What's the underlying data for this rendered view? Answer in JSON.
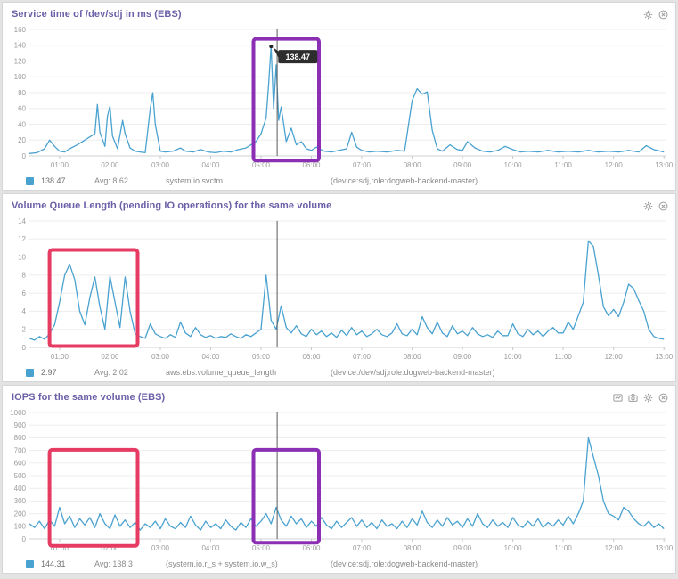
{
  "colors": {
    "series_blue": "#4aa2d0",
    "annotation_purple": "#8b2fb5",
    "annotation_red": "#e63b63",
    "title_purple": "#6c5fa7",
    "tooltip_bg": "#2d2d2d"
  },
  "chart_data": [
    {
      "type": "line",
      "title": "Service time of /dev/sdj in ms (EBS)",
      "legend": {
        "value": "138.47",
        "avg": "Avg: 8.62",
        "metric": "system.io.svctm",
        "scope": "(device:sdj,role:dogweb-backend-master)"
      },
      "xlim": [
        0.4,
        13.05
      ],
      "ylim": [
        0,
        160
      ],
      "ystep": 20,
      "xticks": [
        "01:00",
        "02:00",
        "03:00",
        "04:00",
        "05:00",
        "06:00",
        "07:00",
        "08:00",
        "09:00",
        "10:00",
        "11:00",
        "12:00",
        "13:00"
      ],
      "crosshair_x": 5.32,
      "tooltip": {
        "x": 5.2,
        "y": 138.47,
        "label": "138.47"
      },
      "boxes": [
        {
          "x0": 4.85,
          "x1": 6.15,
          "y0": -6,
          "y1": 148,
          "color": "#8b2fb5",
          "name": "spike-highlight"
        }
      ],
      "series": [
        {
          "name": "system.io.svctm",
          "color": "#4aa2d0",
          "x": [
            0.4,
            0.55,
            0.7,
            0.8,
            0.9,
            1.0,
            1.1,
            1.2,
            1.35,
            1.5,
            1.6,
            1.7,
            1.75,
            1.8,
            1.9,
            1.95,
            2.0,
            2.05,
            2.15,
            2.25,
            2.3,
            2.4,
            2.5,
            2.6,
            2.7,
            2.8,
            2.85,
            2.9,
            3.0,
            3.1,
            3.25,
            3.4,
            3.5,
            3.65,
            3.8,
            3.95,
            4.1,
            4.25,
            4.4,
            4.55,
            4.7,
            4.8,
            4.9,
            5.0,
            5.1,
            5.15,
            5.2,
            5.25,
            5.3,
            5.35,
            5.4,
            5.5,
            5.6,
            5.7,
            5.8,
            5.9,
            6.0,
            6.1,
            6.25,
            6.4,
            6.55,
            6.7,
            6.8,
            6.9,
            7.0,
            7.15,
            7.3,
            7.5,
            7.7,
            7.85,
            8.0,
            8.1,
            8.2,
            8.3,
            8.4,
            8.5,
            8.6,
            8.75,
            8.9,
            9.0,
            9.1,
            9.25,
            9.4,
            9.55,
            9.7,
            9.85,
            10.0,
            10.15,
            10.3,
            10.5,
            10.7,
            10.9,
            11.1,
            11.3,
            11.5,
            11.7,
            11.9,
            12.1,
            12.3,
            12.5,
            12.65,
            12.8,
            13.0
          ],
          "y": [
            3,
            4,
            9,
            20,
            12,
            6,
            5,
            9,
            14,
            20,
            24,
            28,
            65,
            30,
            12,
            50,
            63,
            25,
            9,
            45,
            28,
            10,
            6,
            5,
            4,
            60,
            80,
            40,
            6,
            5,
            6,
            10,
            6,
            5,
            8,
            5,
            4,
            6,
            5,
            8,
            10,
            14,
            18,
            28,
            48,
            90,
            138.47,
            60,
            115,
            45,
            62,
            18,
            35,
            14,
            18,
            9,
            7,
            11,
            6,
            5,
            7,
            9,
            30,
            11,
            7,
            5,
            6,
            5,
            7,
            6,
            70,
            85,
            78,
            81,
            32,
            9,
            6,
            14,
            8,
            7,
            18,
            10,
            6,
            5,
            7,
            12,
            8,
            5,
            6,
            5,
            7,
            5,
            6,
            5,
            7,
            5,
            6,
            5,
            7,
            5,
            13,
            8,
            5
          ]
        }
      ]
    },
    {
      "type": "line",
      "title": "Volume Queue Length (pending IO operations) for the same volume",
      "legend": {
        "value": "2.97",
        "avg": "Avg: 2.02",
        "metric": "aws.ebs.volume_queue_length",
        "scope": "(device:/dev/sdj,role:dogweb-backend-master)"
      },
      "xlim": [
        0.4,
        13.05
      ],
      "ylim": [
        0,
        14
      ],
      "ystep": 2,
      "xticks": [
        "01:00",
        "02:00",
        "03:00",
        "04:00",
        "05:00",
        "06:00",
        "07:00",
        "08:00",
        "09:00",
        "10:00",
        "11:00",
        "12:00",
        "13:00"
      ],
      "crosshair_x": 5.32,
      "boxes": [
        {
          "x0": 0.8,
          "x1": 2.55,
          "y0": 0.15,
          "y1": 10.8,
          "color": "#e63b63",
          "name": "queue-spike-highlight"
        }
      ],
      "series": [
        {
          "name": "aws.ebs.volume_queue_length",
          "color": "#4aa2d0",
          "x_start": 0.4,
          "x_step": 0.1,
          "y": [
            1,
            0.8,
            1.2,
            0.9,
            1.5,
            2.5,
            5,
            8,
            9.2,
            7.5,
            4,
            2.5,
            5.5,
            7.8,
            4.5,
            2,
            7.9,
            5,
            2.2,
            7.8,
            4,
            1.5,
            1.2,
            1,
            2.6,
            1.5,
            1.2,
            1,
            1.4,
            1.1,
            2.8,
            1.6,
            1.2,
            2.2,
            1.4,
            1.1,
            1.3,
            1,
            1.2,
            1.1,
            1.5,
            1.2,
            1,
            1.4,
            1.2,
            1.6,
            2,
            8,
            3,
            2,
            4.6,
            2.2,
            1.6,
            2.4,
            1.5,
            1.2,
            2,
            1.4,
            1.8,
            1.2,
            1.6,
            1.1,
            1.9,
            1.3,
            2.2,
            1.4,
            1.8,
            1.2,
            1.5,
            2,
            1.4,
            1.2,
            1.6,
            2.6,
            1.5,
            1.3,
            2,
            1.4,
            3.4,
            2.2,
            1.5,
            2.8,
            1.6,
            1.2,
            2.4,
            1.5,
            1.8,
            1.3,
            2.2,
            1.5,
            1.2,
            1.4,
            1.1,
            1.8,
            1.3,
            1.3,
            2.6,
            1.5,
            1.2,
            2,
            1.4,
            1.8,
            1.2,
            1.8,
            2.2,
            1.6,
            1.6,
            2.8,
            2,
            3.5,
            5,
            11.8,
            11.2,
            8,
            4.5,
            3.5,
            4.2,
            3.4,
            5,
            7,
            6.5,
            5.2,
            4,
            2,
            1.2,
            1,
            0.9
          ]
        }
      ]
    },
    {
      "type": "line",
      "title": "IOPS for the same volume (EBS)",
      "legend": {
        "value": "144.31",
        "avg": "Avg: 138.3",
        "metric": "(system.io.r_s + system.io.w_s)",
        "scope": "(device:sdj,role:dogweb-backend-master)"
      },
      "xlim": [
        0.4,
        13.05
      ],
      "ylim": [
        0,
        1000
      ],
      "ystep": 100,
      "xticks": [
        "01:00",
        "02:00",
        "03:00",
        "04:00",
        "05:00",
        "06:00",
        "07:00",
        "08:00",
        "09:00",
        "10:00",
        "11:00",
        "12:00",
        "13:00"
      ],
      "crosshair_x": 5.32,
      "boxes": [
        {
          "x0": 0.8,
          "x1": 2.55,
          "y0": -55,
          "y1": 705,
          "color": "#e63b63",
          "name": "iops-early-highlight"
        },
        {
          "x0": 4.85,
          "x1": 6.15,
          "y0": -30,
          "y1": 705,
          "color": "#8b2fb5",
          "name": "iops-spike-highlight"
        }
      ],
      "series": [
        {
          "name": "(system.io.r_s + system.io.w_s)",
          "color": "#4aa2d0",
          "x_start": 0.4,
          "x_step": 0.1,
          "y": [
            120,
            90,
            140,
            80,
            150,
            100,
            250,
            120,
            180,
            90,
            160,
            110,
            170,
            90,
            200,
            120,
            80,
            190,
            100,
            150,
            90,
            130,
            70,
            120,
            90,
            140,
            80,
            160,
            100,
            80,
            130,
            90,
            180,
            110,
            70,
            140,
            90,
            120,
            80,
            150,
            100,
            70,
            130,
            90,
            160,
            100,
            140,
            200,
            120,
            250,
            150,
            100,
            180,
            120,
            160,
            90,
            140,
            100,
            170,
            110,
            80,
            140,
            90,
            130,
            170,
            100,
            150,
            90,
            130,
            80,
            150,
            100,
            120,
            80,
            140,
            90,
            160,
            110,
            220,
            130,
            90,
            150,
            100,
            170,
            110,
            140,
            90,
            160,
            100,
            200,
            120,
            90,
            150,
            100,
            130,
            90,
            170,
            110,
            90,
            140,
            100,
            160,
            90,
            130,
            100,
            150,
            110,
            180,
            120,
            200,
            300,
            800,
            650,
            500,
            300,
            200,
            180,
            150,
            250,
            220,
            160,
            120,
            100,
            140,
            90,
            120,
            80
          ]
        }
      ]
    }
  ]
}
